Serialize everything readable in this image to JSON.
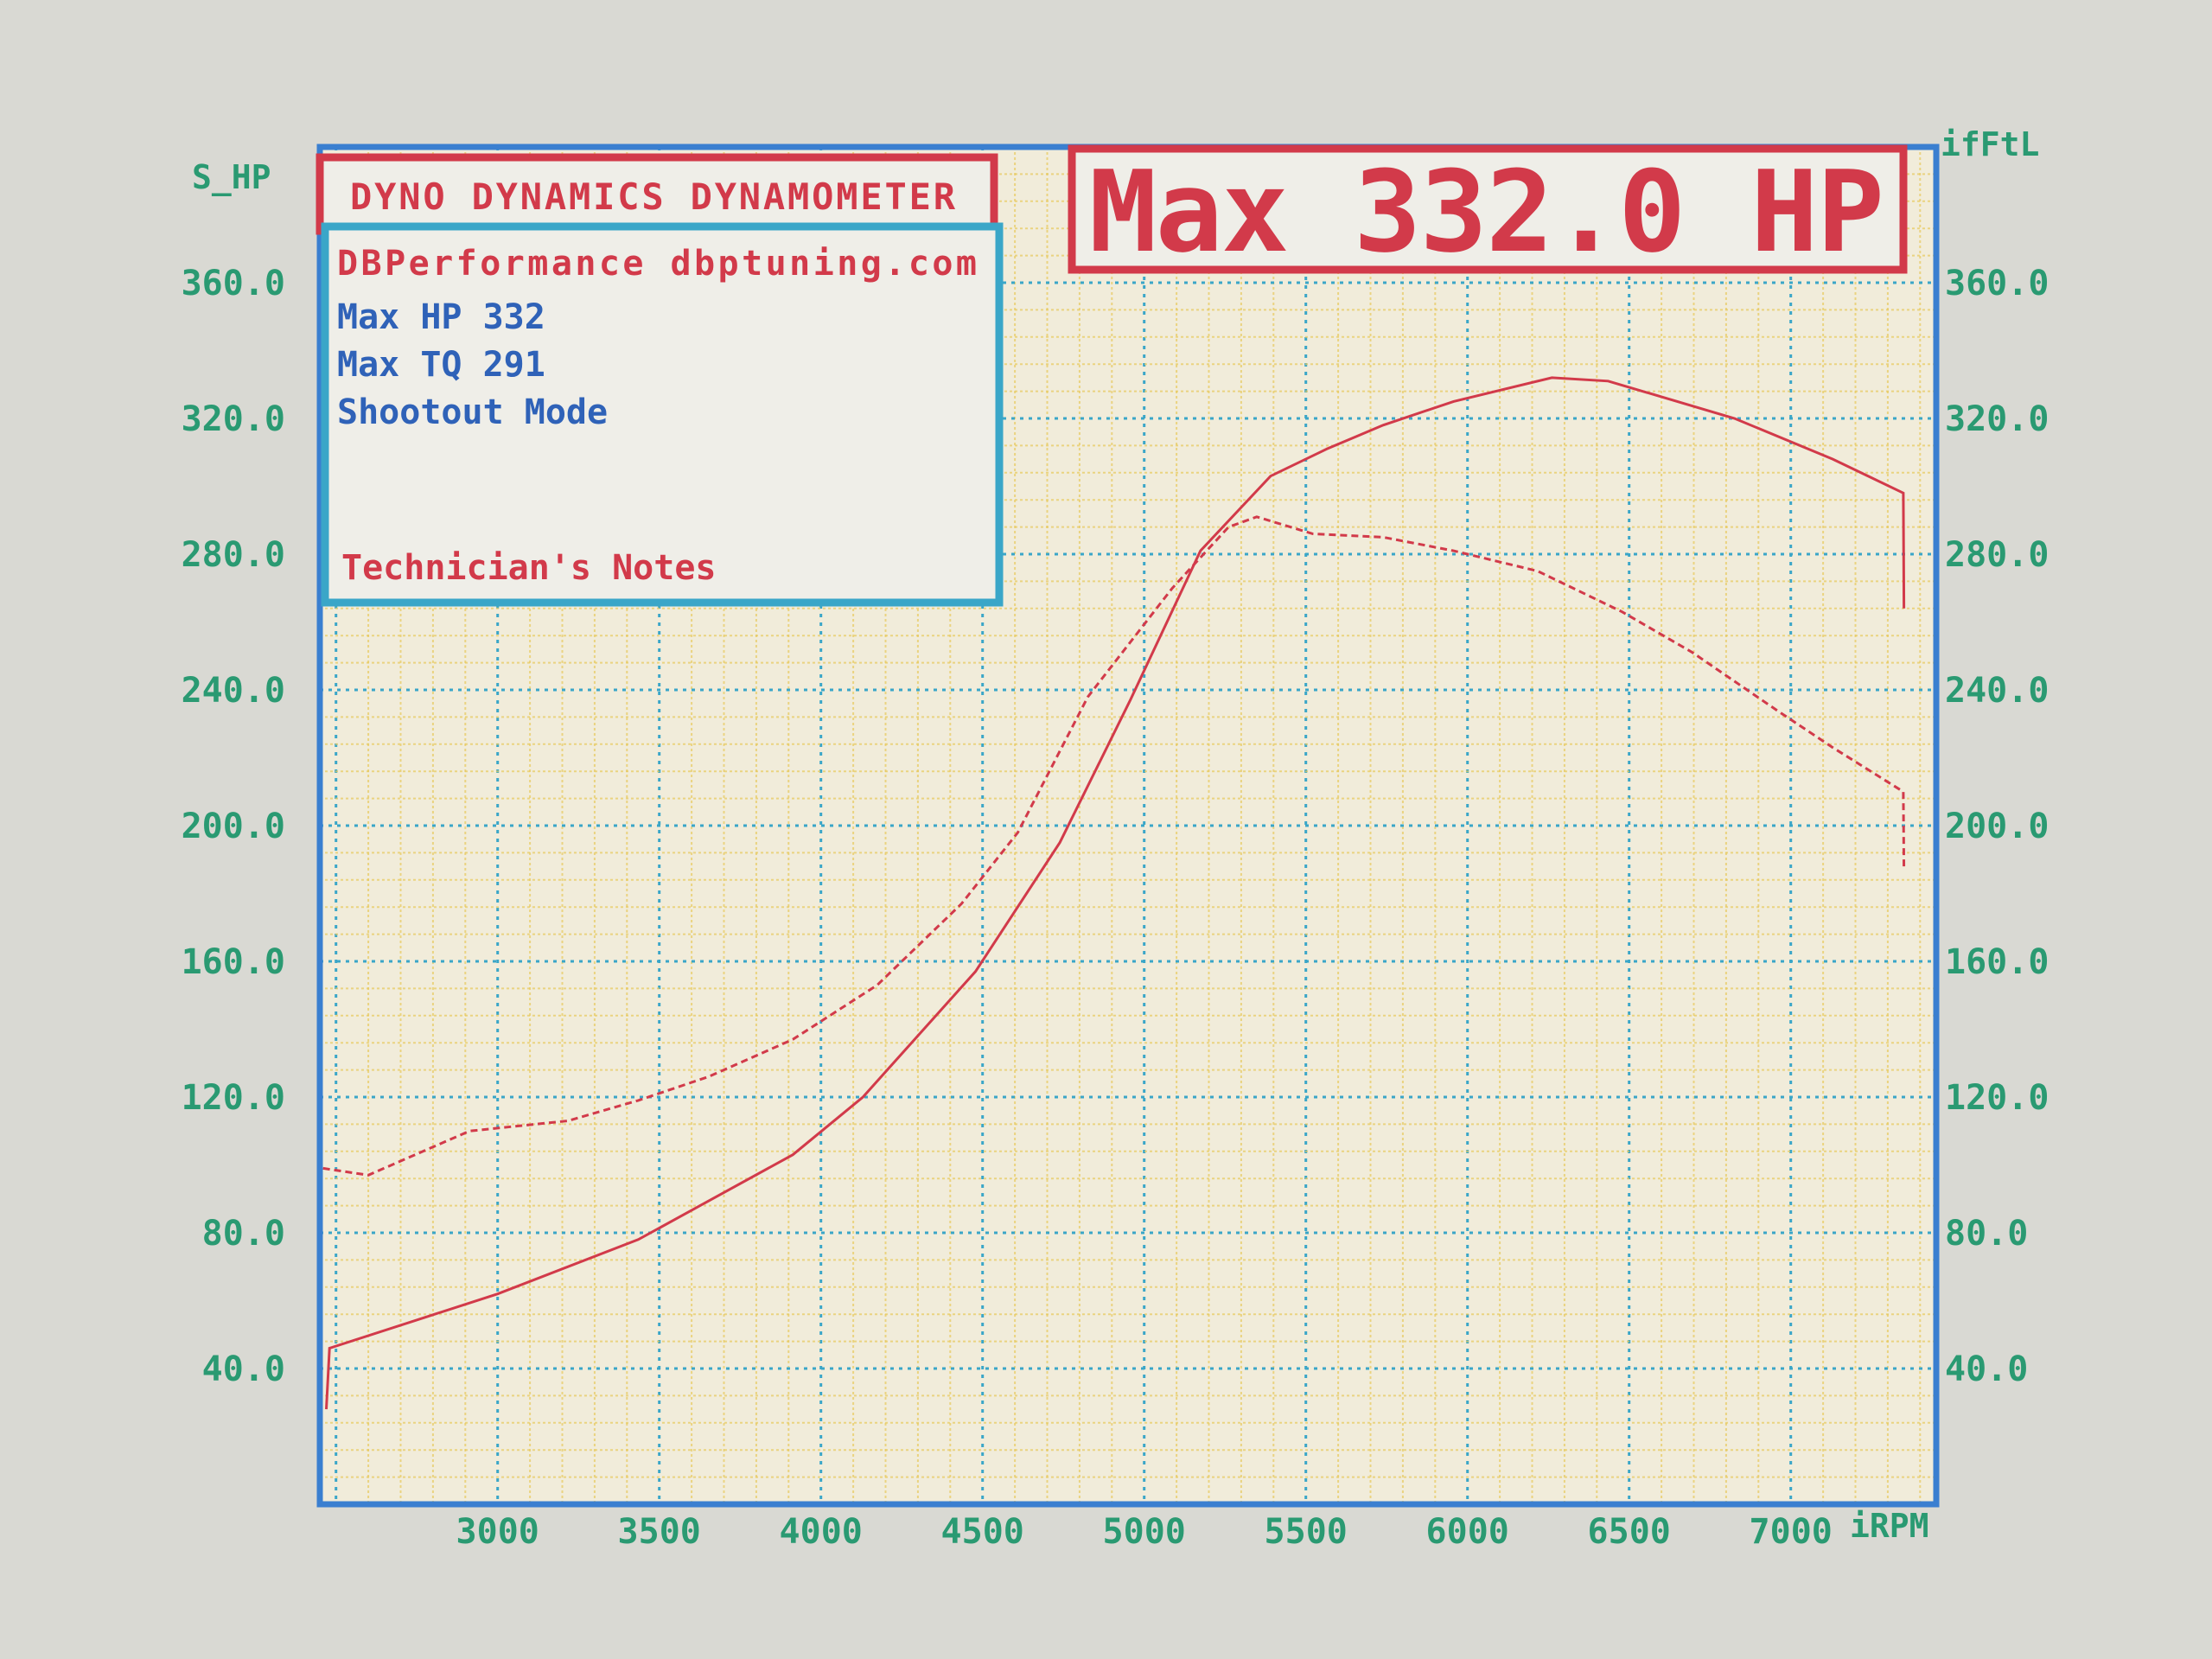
{
  "header": {
    "title": "DYNO DYNAMICS DYNAMOMETER",
    "max_banner": "Max 332.0 HP"
  },
  "info_box": {
    "shop": "DBPerformance dbptuning.com",
    "lines": [
      "Max HP 332",
      "Max TQ 291",
      "Shootout Mode"
    ],
    "notes_label": "Technician's Notes"
  },
  "colors": {
    "background": "#d9d9d3",
    "plot_bg": "#f1ecda",
    "minor_grid": "#e8c95a",
    "major_grid": "#3aa6c8",
    "border": "#3a7fd0",
    "curve": "#d23a4a",
    "axis_text": "#2a9a72",
    "text_red": "#d23a4a",
    "text_blue": "#2f62b8"
  },
  "chart_data": {
    "type": "line",
    "xlabel": "iRPM",
    "ylabel_left": "S_HP",
    "ylabel_right": "ifFtL",
    "xlim": [
      2450,
      7450
    ],
    "ylim": [
      0,
      400
    ],
    "x_ticks": [
      "3000",
      "3500",
      "4000",
      "4500",
      "5000",
      "5500",
      "6000",
      "6500",
      "7000"
    ],
    "y_ticks_left": [
      "40.0",
      "80.0",
      "120.0",
      "160.0",
      "200.0",
      "240.0",
      "280.0",
      "320.0",
      "360.0"
    ],
    "y_ticks_right": [
      "40.0",
      "80.0",
      "120.0",
      "160.0",
      "200.0",
      "240.0",
      "280.0",
      "320.0",
      "360.0"
    ],
    "grid": true,
    "series": [
      {
        "style": "solid",
        "axis": "left",
        "x": [
          2470,
          2480,
          3000,
          3435,
          3913,
          4130,
          4478,
          4739,
          4957,
          5174,
          5391,
          5565,
          5739,
          5957,
          6261,
          6435,
          6826,
          7130,
          7348,
          7350
        ],
        "y": [
          28,
          46,
          62,
          78,
          103,
          120,
          157,
          195,
          237,
          281,
          303,
          311,
          318,
          325,
          332,
          331,
          320,
          308,
          298,
          264
        ]
      },
      {
        "style": "dashed",
        "axis": "left",
        "x": [
          2460,
          2600,
          2913,
          3217,
          3435,
          3652,
          3913,
          4174,
          4435,
          4609,
          4826,
          5087,
          5261,
          5348,
          5522,
          5739,
          5957,
          6217,
          6478,
          6696,
          6957,
          7130,
          7348,
          7350
        ],
        "y": [
          99,
          97,
          110,
          113,
          119,
          126,
          137,
          153,
          177,
          198,
          238,
          270,
          288,
          291,
          286,
          285,
          281,
          275,
          263,
          251,
          234,
          223,
          210,
          187
        ]
      }
    ]
  }
}
